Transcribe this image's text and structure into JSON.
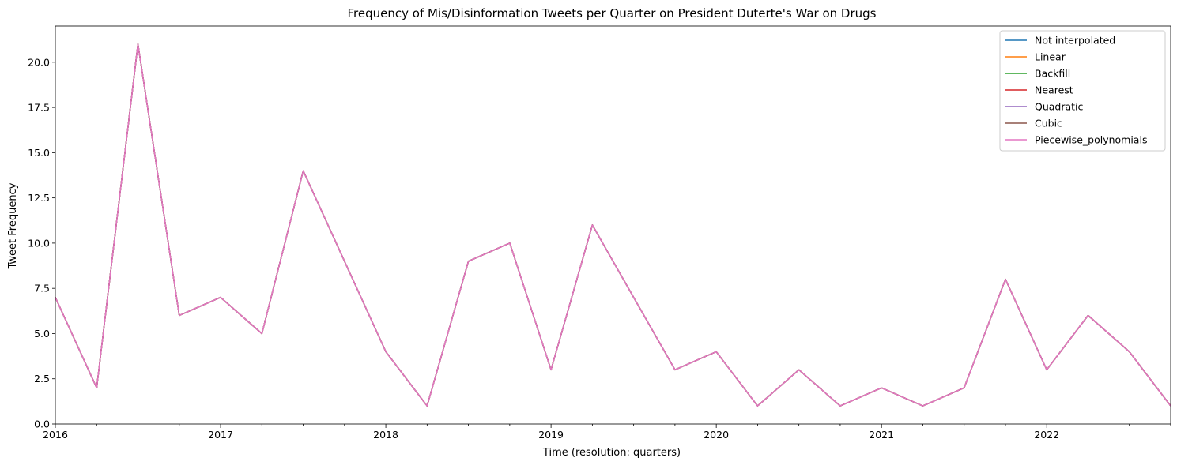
{
  "chart_data": {
    "type": "line",
    "title": "Frequency of Mis/Disinformation Tweets per Quarter on President Duterte's War on Drugs",
    "xlabel": "Time (resolution: quarters)",
    "ylabel": "Tweet Frequency",
    "x": [
      "2016Q1",
      "2016Q2",
      "2016Q3",
      "2016Q4",
      "2017Q1",
      "2017Q2",
      "2017Q3",
      "2017Q4",
      "2018Q1",
      "2018Q2",
      "2018Q3",
      "2018Q4",
      "2019Q1",
      "2019Q2",
      "2019Q3",
      "2019Q4",
      "2020Q1",
      "2020Q2",
      "2020Q3",
      "2020Q4",
      "2021Q1",
      "2021Q2",
      "2021Q3",
      "2021Q4",
      "2022Q1",
      "2022Q2",
      "2022Q3",
      "2022Q4"
    ],
    "x_tick_labels": [
      "2016",
      "2017",
      "2018",
      "2019",
      "2020",
      "2021",
      "2022"
    ],
    "ylim": [
      0,
      22
    ],
    "y_ticks": [
      "0.0",
      "2.5",
      "5.0",
      "7.5",
      "10.0",
      "12.5",
      "15.0",
      "17.5",
      "20.0"
    ],
    "grid": false,
    "legend_position": "top-right",
    "series": [
      {
        "name": "Not interpolated",
        "color": "#1f77b4",
        "values": [
          7,
          2,
          21,
          6,
          7,
          5,
          14,
          9,
          4,
          1,
          9,
          10,
          3,
          11,
          7,
          3,
          4,
          1,
          3,
          1,
          2,
          1,
          2,
          8,
          3,
          6,
          4,
          1
        ]
      },
      {
        "name": "Linear",
        "color": "#ff7f0e",
        "values": [
          7,
          2,
          21,
          6,
          7,
          5,
          14,
          9,
          4,
          1,
          9,
          10,
          3,
          11,
          7,
          3,
          4,
          1,
          3,
          1,
          2,
          1,
          2,
          8,
          3,
          6,
          4,
          1
        ]
      },
      {
        "name": "Backfill",
        "color": "#2ca02c",
        "values": [
          7,
          2,
          21,
          6,
          7,
          5,
          14,
          9,
          4,
          1,
          9,
          10,
          3,
          11,
          7,
          3,
          4,
          1,
          3,
          1,
          2,
          1,
          2,
          8,
          3,
          6,
          4,
          1
        ]
      },
      {
        "name": "Nearest",
        "color": "#d62728",
        "values": [
          7,
          2,
          21,
          6,
          7,
          5,
          14,
          9,
          4,
          1,
          9,
          10,
          3,
          11,
          7,
          3,
          4,
          1,
          3,
          1,
          2,
          1,
          2,
          8,
          3,
          6,
          4,
          1
        ]
      },
      {
        "name": "Quadratic",
        "color": "#9467bd",
        "values": [
          7,
          2,
          21,
          6,
          7,
          5,
          14,
          9,
          4,
          1,
          9,
          10,
          3,
          11,
          7,
          3,
          4,
          1,
          3,
          1,
          2,
          1,
          2,
          8,
          3,
          6,
          4,
          1
        ]
      },
      {
        "name": "Cubic",
        "color": "#8c564b",
        "values": [
          7,
          2,
          21,
          6,
          7,
          5,
          14,
          9,
          4,
          1,
          9,
          10,
          3,
          11,
          7,
          3,
          4,
          1,
          3,
          1,
          2,
          1,
          2,
          8,
          3,
          6,
          4,
          1
        ]
      },
      {
        "name": "Piecewise_polynomials",
        "color": "#e377c2",
        "values": [
          7,
          2,
          21,
          6,
          7,
          5,
          14,
          9,
          4,
          1,
          9,
          10,
          3,
          11,
          7,
          3,
          4,
          1,
          3,
          1,
          2,
          1,
          2,
          8,
          3,
          6,
          4,
          1
        ]
      }
    ]
  }
}
